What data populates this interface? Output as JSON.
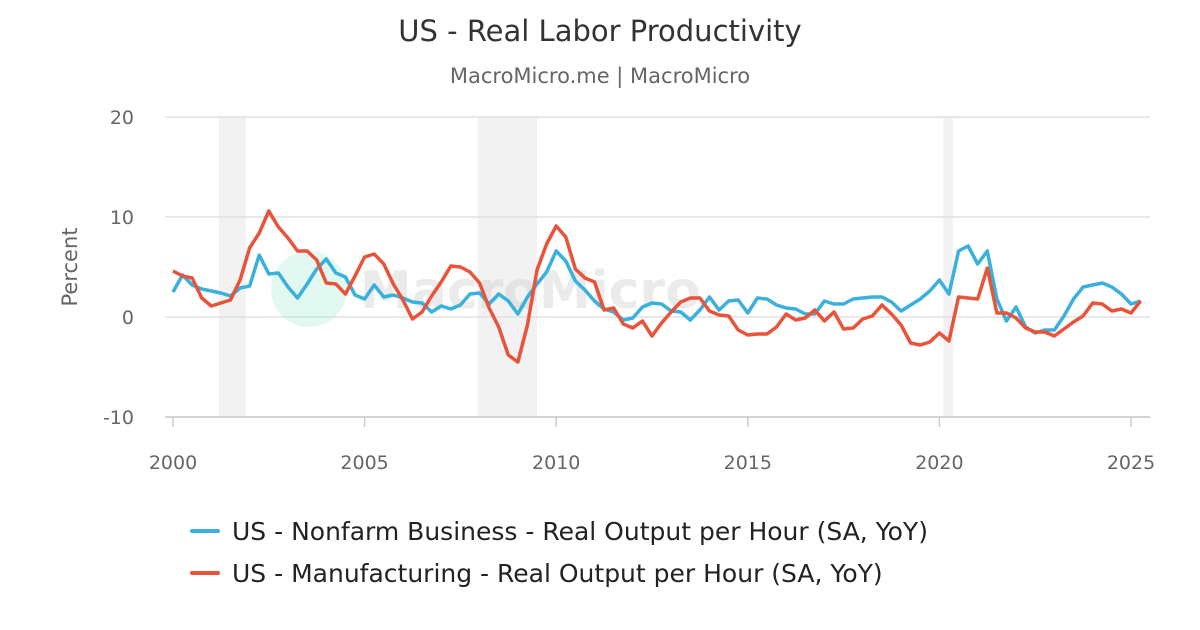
{
  "chart_data": {
    "type": "line",
    "title": "US - Real Labor Productivity",
    "subtitle": "MacroMicro.me | MacroMicro",
    "watermark": "MacroMicro",
    "ylabel": "Percent",
    "xlabel": "",
    "ylim": [
      -10,
      20
    ],
    "yticks": [
      "20",
      "10",
      "0",
      "-10"
    ],
    "xticks": [
      "2000",
      "2005",
      "2010",
      "2015",
      "2020",
      "2025"
    ],
    "grid": true,
    "legend_position": "bottom",
    "x_start": "2000-Q1",
    "frequency": "quarterly",
    "recessions": [
      [
        2001.2,
        2001.9
      ],
      [
        2007.95,
        2009.5
      ],
      [
        2020.1,
        2020.35
      ]
    ],
    "series": [
      {
        "name": "US - Nonfarm Business - Real Output per Hour (SA, YoY)",
        "color": "#3ab0dc",
        "values": [
          2.5,
          4.2,
          3.2,
          2.8,
          2.6,
          2.4,
          2.1,
          2.9,
          3.1,
          6.2,
          4.3,
          4.4,
          3.0,
          1.9,
          3.3,
          4.8,
          5.8,
          4.4,
          4.0,
          2.2,
          1.8,
          3.2,
          2.0,
          2.2,
          1.9,
          1.5,
          1.4,
          0.5,
          1.1,
          0.8,
          1.2,
          2.3,
          2.4,
          1.3,
          2.3,
          1.6,
          0.3,
          2.0,
          3.3,
          4.5,
          6.6,
          5.6,
          3.6,
          2.7,
          1.6,
          0.8,
          0.5,
          -0.3,
          -0.1,
          1.0,
          1.4,
          1.3,
          0.6,
          0.5,
          -0.3,
          0.7,
          2.0,
          0.7,
          1.6,
          1.7,
          0.4,
          1.9,
          1.8,
          1.2,
          0.9,
          0.8,
          0.3,
          0.3,
          1.6,
          1.3,
          1.3,
          1.8,
          1.9,
          2.0,
          2.0,
          1.5,
          0.6,
          1.2,
          1.8,
          2.6,
          3.7,
          2.3,
          6.6,
          7.1,
          5.3,
          6.6,
          1.8,
          -0.4,
          1.0,
          -1.0,
          -1.6,
          -1.3,
          -1.3,
          0.1,
          1.8,
          3.0,
          3.2,
          3.4,
          3.0,
          2.3,
          1.3,
          1.6
        ]
      },
      {
        "name": "US - Manufacturing - Real Output per Hour (SA, YoY)",
        "color": "#e8533a",
        "values": [
          4.6,
          4.1,
          3.9,
          1.9,
          1.1,
          1.4,
          1.7,
          3.7,
          6.9,
          8.4,
          10.6,
          9.0,
          7.9,
          6.6,
          6.6,
          5.7,
          3.4,
          3.3,
          2.3,
          4.1,
          6.0,
          6.3,
          5.3,
          3.3,
          1.7,
          -0.2,
          0.5,
          2.1,
          3.5,
          5.1,
          5.0,
          4.5,
          3.4,
          0.9,
          -1.0,
          -3.8,
          -4.5,
          -0.8,
          4.7,
          7.3,
          9.1,
          8.0,
          4.8,
          3.9,
          3.5,
          0.7,
          0.9,
          -0.7,
          -1.1,
          -0.4,
          -1.9,
          -0.6,
          0.5,
          1.5,
          1.9,
          1.9,
          0.6,
          0.2,
          0.1,
          -1.3,
          -1.8,
          -1.7,
          -1.7,
          -1.0,
          0.3,
          -0.3,
          -0.1,
          0.7,
          -0.4,
          0.5,
          -1.2,
          -1.1,
          -0.2,
          0.1,
          1.2,
          0.3,
          -0.8,
          -2.6,
          -2.8,
          -2.5,
          -1.6,
          -2.4,
          2.0,
          1.9,
          1.8,
          4.9,
          0.4,
          0.4,
          -0.1,
          -1.1,
          -1.5,
          -1.5,
          -1.9,
          -1.2,
          -0.5,
          0.1,
          1.4,
          1.3,
          0.6,
          0.8,
          0.4,
          1.6
        ]
      }
    ]
  }
}
